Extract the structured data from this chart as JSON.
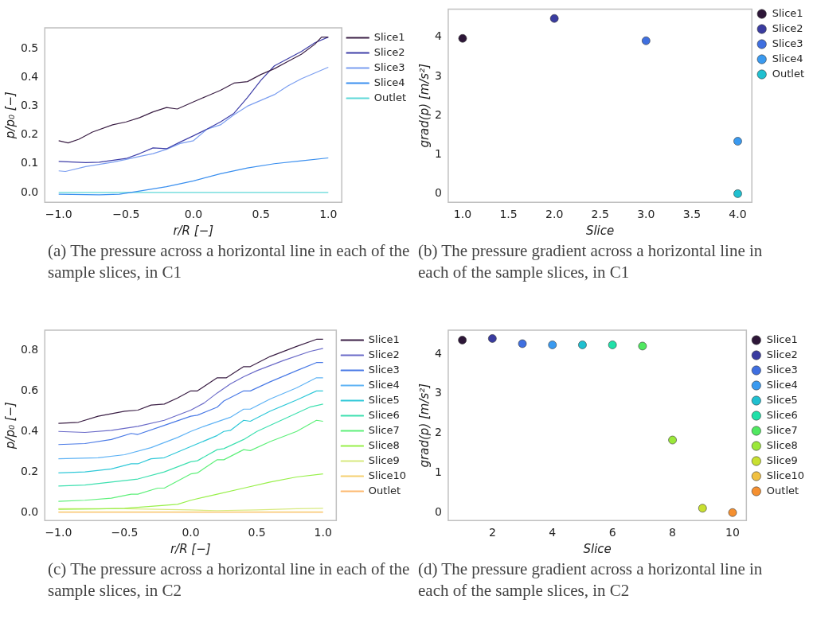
{
  "chart_data": [
    {
      "type": "line",
      "xlabel": "r/R [−]",
      "ylabel": "p/p₀ [−]",
      "xlim": [
        -1.103,
        1.1
      ],
      "ylim": [
        -0.034,
        0.572
      ],
      "xticks": [
        {
          "value": -1,
          "label": "−1.0"
        },
        {
          "value": -0.5,
          "label": "−0.5"
        },
        {
          "value": 0,
          "label": "0.0"
        },
        {
          "value": 0.5,
          "label": "0.5"
        },
        {
          "value": 1,
          "label": "1.0"
        }
      ],
      "yticks": [
        {
          "value": 0,
          "label": "0.0"
        },
        {
          "value": 0.1,
          "label": "0.1"
        },
        {
          "value": 0.2,
          "label": "0.2"
        },
        {
          "value": 0.3,
          "label": "0.3"
        },
        {
          "value": 0.4,
          "label": "0.4"
        },
        {
          "value": 0.5,
          "label": "0.5"
        }
      ],
      "grid": false,
      "legend": "top right",
      "marker": "none",
      "line_style": "solid",
      "annotations": [
        "(a) The pressure across a horizontal line in each of the sample slices, in C1"
      ],
      "series": [
        {
          "name": "Slice1",
          "color": "#3b1f45",
          "x": [
            -1,
            -0.93,
            -0.85,
            -0.75,
            -0.6,
            -0.5,
            -0.4,
            -0.3,
            -0.2,
            -0.12,
            0,
            0.1,
            0.2,
            0.3,
            0.4,
            0.5,
            0.6,
            0.7,
            0.8,
            0.9,
            0.95,
            1
          ],
          "values": [
            0.18,
            0.172,
            0.185,
            0.21,
            0.235,
            0.245,
            0.26,
            0.28,
            0.295,
            0.29,
            0.315,
            0.335,
            0.355,
            0.38,
            0.385,
            0.41,
            0.43,
            0.455,
            0.48,
            0.515,
            0.54,
            0.54
          ]
        },
        {
          "name": "Slice2",
          "color": "#3f3fa8",
          "x": [
            -1,
            -0.8,
            -0.7,
            -0.5,
            -0.4,
            -0.3,
            -0.2,
            -0.1,
            0,
            0.1,
            0.2,
            0.3,
            0.4,
            0.5,
            0.6,
            0.7,
            0.8,
            0.9,
            1
          ],
          "values": [
            0.108,
            0.104,
            0.105,
            0.118,
            0.135,
            0.155,
            0.152,
            0.175,
            0.197,
            0.22,
            0.245,
            0.275,
            0.33,
            0.39,
            0.44,
            0.465,
            0.49,
            0.52,
            0.54
          ]
        },
        {
          "name": "Slice3",
          "color": "#7b9ef0",
          "x": [
            -1,
            -0.95,
            -0.8,
            -0.6,
            -0.5,
            -0.4,
            -0.3,
            -0.2,
            -0.1,
            0,
            0.1,
            0.2,
            0.3,
            0.4,
            0.5,
            0.6,
            0.7,
            0.8,
            0.9,
            1
          ],
          "values": [
            0.075,
            0.073,
            0.09,
            0.105,
            0.115,
            0.125,
            0.135,
            0.15,
            0.17,
            0.18,
            0.22,
            0.235,
            0.27,
            0.3,
            0.32,
            0.34,
            0.37,
            0.395,
            0.415,
            0.435
          ]
        },
        {
          "name": "Slice4",
          "color": "#3a8fef",
          "x": [
            -1,
            -0.7,
            -0.55,
            -0.4,
            -0.2,
            0,
            0.2,
            0.4,
            0.6,
            0.8,
            1
          ],
          "values": [
            -0.006,
            -0.008,
            -0.006,
            0.005,
            0.02,
            0.04,
            0.065,
            0.085,
            0.1,
            0.11,
            0.12
          ]
        },
        {
          "name": "Outlet",
          "color": "#5ed8d8",
          "x": [
            -1,
            1
          ],
          "values": [
            0,
            0
          ]
        }
      ]
    },
    {
      "type": "scatter",
      "xlabel": "Slice",
      "ylabel": "grad(p) [m/s²]",
      "xlim": [
        0.843,
        4.154
      ],
      "ylim": [
        -0.22,
        4.72
      ],
      "xticks": [
        {
          "value": 1,
          "label": "1.0"
        },
        {
          "value": 1.5,
          "label": "1.5"
        },
        {
          "value": 2,
          "label": "2.0"
        },
        {
          "value": 2.5,
          "label": "2.5"
        },
        {
          "value": 3,
          "label": "3.0"
        },
        {
          "value": 3.5,
          "label": "3.5"
        },
        {
          "value": 4,
          "label": "4.0"
        }
      ],
      "yticks": [
        0,
        1,
        2,
        3,
        4
      ],
      "grid": false,
      "legend": "top right",
      "marker": "circle",
      "annotations": [
        "(b) The pressure gradient across a horizontal line in each of the sample slices, in C1"
      ],
      "series": [
        {
          "name": "Slice1",
          "color": "#2d1638",
          "x": [
            1
          ],
          "values": [
            3.97
          ]
        },
        {
          "name": "Slice2",
          "color": "#3a3ca0",
          "x": [
            2
          ],
          "values": [
            4.48
          ]
        },
        {
          "name": "Slice3",
          "color": "#3f6fe0",
          "x": [
            3
          ],
          "values": [
            3.91
          ]
        },
        {
          "name": "Slice4",
          "color": "#3a9af0",
          "x": [
            4
          ],
          "values": [
            1.34
          ]
        },
        {
          "name": "Outlet",
          "color": "#20c0d0",
          "x": [
            4
          ],
          "values": [
            0
          ]
        }
      ]
    },
    {
      "type": "line",
      "xlabel": "r/R [−]",
      "ylabel": "p/p₀ [−]",
      "xlim": [
        -1.103,
        1.1
      ],
      "ylim": [
        -0.04,
        0.9
      ],
      "xticks": [
        {
          "value": -1,
          "label": "−1.0"
        },
        {
          "value": -0.5,
          "label": "−0.5"
        },
        {
          "value": 0,
          "label": "0.0"
        },
        {
          "value": 0.5,
          "label": "0.5"
        },
        {
          "value": 1,
          "label": "1.0"
        }
      ],
      "yticks": [
        {
          "value": 0,
          "label": "0.0"
        },
        {
          "value": 0.2,
          "label": "0.2"
        },
        {
          "value": 0.4,
          "label": "0.4"
        },
        {
          "value": 0.6,
          "label": "0.6"
        },
        {
          "value": 0.8,
          "label": "0.8"
        }
      ],
      "grid": false,
      "legend": "top right",
      "marker": "none",
      "line_style": "solid",
      "annotations": [
        "(c) The pressure across a horizontal line in each of the sample slices, in C2"
      ],
      "series": [
        {
          "name": "Slice1",
          "color": "#3b1f45",
          "x": [
            -1,
            -0.85,
            -0.7,
            -0.5,
            -0.4,
            -0.3,
            -0.2,
            -0.1,
            0,
            0.05,
            0.2,
            0.27,
            0.4,
            0.45,
            0.6,
            0.8,
            0.95,
            1
          ],
          "values": [
            0.44,
            0.445,
            0.475,
            0.5,
            0.505,
            0.53,
            0.535,
            0.565,
            0.6,
            0.6,
            0.665,
            0.665,
            0.72,
            0.72,
            0.77,
            0.82,
            0.855,
            0.855
          ]
        },
        {
          "name": "Slice2",
          "color": "#6a6ac8",
          "x": [
            -1,
            -0.8,
            -0.6,
            -0.4,
            -0.2,
            0,
            0.1,
            0.2,
            0.3,
            0.4,
            0.5,
            0.7,
            0.9,
            1
          ],
          "values": [
            0.4,
            0.395,
            0.405,
            0.425,
            0.455,
            0.505,
            0.54,
            0.59,
            0.635,
            0.67,
            0.7,
            0.75,
            0.795,
            0.81
          ]
        },
        {
          "name": "Slice3",
          "color": "#4a7ae6",
          "x": [
            -1,
            -0.8,
            -0.6,
            -0.45,
            -0.4,
            -0.2,
            0,
            0.05,
            0.2,
            0.25,
            0.4,
            0.45,
            0.6,
            0.8,
            0.95,
            1
          ],
          "values": [
            0.335,
            0.34,
            0.36,
            0.39,
            0.385,
            0.43,
            0.475,
            0.48,
            0.52,
            0.55,
            0.6,
            0.6,
            0.645,
            0.7,
            0.74,
            0.74
          ]
        },
        {
          "name": "Slice4",
          "color": "#5fb3f5",
          "x": [
            -1,
            -0.7,
            -0.5,
            -0.3,
            -0.1,
            0,
            0.1,
            0.3,
            0.4,
            0.45,
            0.6,
            0.8,
            0.95,
            1
          ],
          "values": [
            0.265,
            0.27,
            0.285,
            0.32,
            0.37,
            0.4,
            0.425,
            0.47,
            0.51,
            0.51,
            0.56,
            0.615,
            0.665,
            0.665
          ]
        },
        {
          "name": "Slice5",
          "color": "#2fc8d8",
          "x": [
            -1,
            -0.8,
            -0.6,
            -0.45,
            -0.4,
            -0.3,
            -0.2,
            0,
            0.2,
            0.25,
            0.3,
            0.4,
            0.45,
            0.6,
            0.8,
            0.95,
            1
          ],
          "values": [
            0.195,
            0.2,
            0.215,
            0.24,
            0.24,
            0.265,
            0.27,
            0.325,
            0.38,
            0.4,
            0.405,
            0.455,
            0.45,
            0.5,
            0.555,
            0.6,
            0.6
          ]
        },
        {
          "name": "Slice6",
          "color": "#3ee0b0",
          "x": [
            -1,
            -0.8,
            -0.6,
            -0.4,
            -0.2,
            0,
            0.05,
            0.2,
            0.25,
            0.4,
            0.5,
            0.7,
            0.9,
            1
          ],
          "values": [
            0.13,
            0.135,
            0.15,
            0.165,
            0.2,
            0.25,
            0.255,
            0.31,
            0.315,
            0.36,
            0.4,
            0.46,
            0.52,
            0.535
          ]
        },
        {
          "name": "Slice7",
          "color": "#5ef07a",
          "x": [
            -1,
            -0.8,
            -0.6,
            -0.45,
            -0.4,
            -0.25,
            -0.2,
            0,
            0.05,
            0.2,
            0.25,
            0.4,
            0.45,
            0.6,
            0.8,
            0.95,
            1
          ],
          "values": [
            0.055,
            0.06,
            0.07,
            0.09,
            0.09,
            0.12,
            0.12,
            0.19,
            0.195,
            0.26,
            0.26,
            0.31,
            0.305,
            0.35,
            0.4,
            0.455,
            0.45
          ]
        },
        {
          "name": "Slice8",
          "color": "#98f04a",
          "x": [
            -1,
            -0.7,
            -0.5,
            -0.3,
            -0.1,
            0,
            0.2,
            0.4,
            0.6,
            0.8,
            1
          ],
          "values": [
            0.015,
            0.017,
            0.02,
            0.03,
            0.04,
            0.06,
            0.09,
            0.12,
            0.15,
            0.175,
            0.19
          ]
        },
        {
          "name": "Slice9",
          "color": "#d8ea80",
          "x": [
            -1,
            -0.5,
            0,
            0.2,
            0.5,
            0.8,
            1
          ],
          "values": [
            0.018,
            0.018,
            0.012,
            0.009,
            0.012,
            0.018,
            0.02
          ]
        },
        {
          "name": "Slice10",
          "color": "#f5d070",
          "x": [
            -1,
            1
          ],
          "values": [
            0.003,
            0.003
          ]
        },
        {
          "name": "Outlet",
          "color": "#fdba70",
          "x": [
            -1,
            1
          ],
          "values": [
            0,
            0
          ]
        }
      ]
    },
    {
      "type": "scatter",
      "xlabel": "Slice",
      "ylabel": "grad(p) [m/s²]",
      "xlim": [
        0.53,
        10.46
      ],
      "ylim": [
        -0.2,
        4.6
      ],
      "xticks": [
        2,
        4,
        6,
        8,
        10
      ],
      "yticks": [
        0,
        1,
        2,
        3,
        4
      ],
      "grid": false,
      "legend": "top right",
      "marker": "circle",
      "annotations": [
        "(d) The pressure gradient across a horizontal line in each of the sample slices, in C2"
      ],
      "series": [
        {
          "name": "Slice1",
          "color": "#2d1638",
          "x": [
            1
          ],
          "values": [
            4.35
          ]
        },
        {
          "name": "Slice2",
          "color": "#3a3ca0",
          "x": [
            2
          ],
          "values": [
            4.39
          ]
        },
        {
          "name": "Slice3",
          "color": "#3f6fe0",
          "x": [
            3
          ],
          "values": [
            4.26
          ]
        },
        {
          "name": "Slice4",
          "color": "#3a9af0",
          "x": [
            4
          ],
          "values": [
            4.23
          ]
        },
        {
          "name": "Slice5",
          "color": "#20c0d0",
          "x": [
            5
          ],
          "values": [
            4.23
          ]
        },
        {
          "name": "Slice6",
          "color": "#20e0a8",
          "x": [
            6
          ],
          "values": [
            4.23
          ]
        },
        {
          "name": "Slice7",
          "color": "#50e860",
          "x": [
            7
          ],
          "values": [
            4.2
          ]
        },
        {
          "name": "Slice8",
          "color": "#9be83a",
          "x": [
            8
          ],
          "values": [
            1.83
          ]
        },
        {
          "name": "Slice9",
          "color": "#c8e030",
          "x": [
            9
          ],
          "values": [
            0.11
          ]
        },
        {
          "name": "Slice10",
          "color": "#f0c040"
        },
        {
          "name": "Outlet",
          "color": "#f59030",
          "x": [
            10
          ],
          "values": [
            0
          ]
        }
      ]
    }
  ]
}
